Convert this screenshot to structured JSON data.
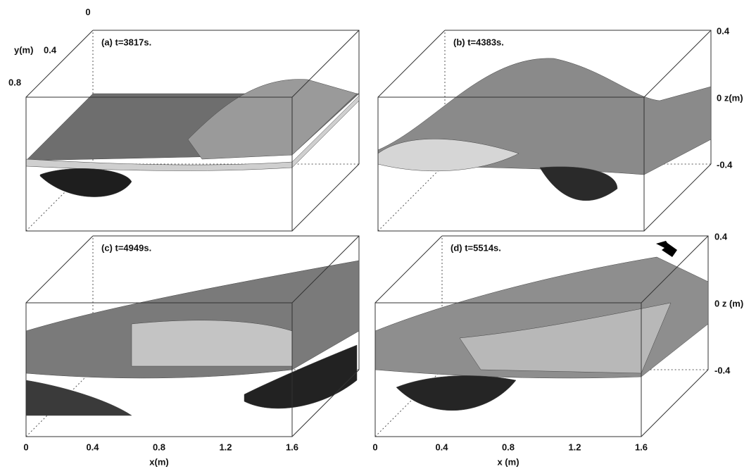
{
  "panels": [
    {
      "label": "(a) t=3817s."
    },
    {
      "label": "(b) t=4383s."
    },
    {
      "label": "(c) t=4949s."
    },
    {
      "label": "(d) t=5514s."
    }
  ],
  "y_axis": {
    "label": "y(m)",
    "ticks": [
      "0",
      "0.4",
      "0.8"
    ]
  },
  "z_axes": [
    {
      "ticks": [
        "0.4",
        "0 z(m)",
        "-0.4"
      ]
    },
    {
      "ticks": [
        "0.4",
        "0 z (m)",
        "-0.4"
      ]
    }
  ],
  "x_axes": [
    {
      "ticks": [
        "0",
        "0.4",
        "0.8",
        "1.2",
        "1.6"
      ],
      "label": "x(m)"
    },
    {
      "ticks": [
        "0",
        "0.4",
        "0.8",
        "1.2",
        "1.6"
      ],
      "label": "x (m)"
    }
  ]
}
